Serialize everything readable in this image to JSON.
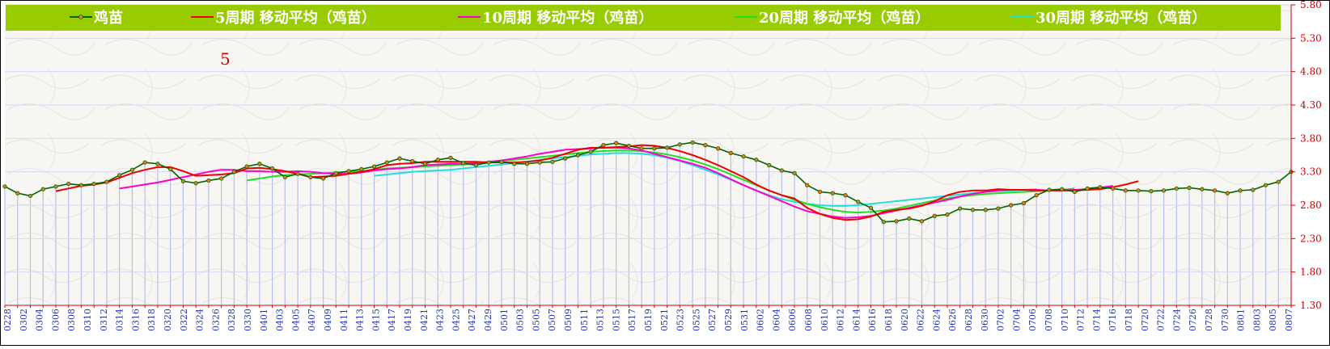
{
  "chart_data": {
    "type": "line",
    "annotation": "5",
    "legend_position": "top",
    "y_axis_side": "right",
    "ylim": [
      1.3,
      5.8
    ],
    "yticks": [
      1.3,
      1.8,
      2.3,
      2.8,
      3.3,
      3.8,
      4.3,
      4.8,
      5.3,
      5.8
    ],
    "x_labels": [
      "0228",
      "0302",
      "0304",
      "0306",
      "0308",
      "0310",
      "0312",
      "0314",
      "0316",
      "0318",
      "0320",
      "0322",
      "0324",
      "0326",
      "0328",
      "0330",
      "0401",
      "0403",
      "0405",
      "0407",
      "0409",
      "0411",
      "0413",
      "0415",
      "0417",
      "0419",
      "0421",
      "0423",
      "0425",
      "0427",
      "0429",
      "0501",
      "0503",
      "0505",
      "0507",
      "0509",
      "0511",
      "0513",
      "0515",
      "0517",
      "0519",
      "0521",
      "0523",
      "0525",
      "0527",
      "0529",
      "0531",
      "0602",
      "0604",
      "0606",
      "0608",
      "0610",
      "0612",
      "0614",
      "0616",
      "0618",
      "0620",
      "0622",
      "0624",
      "0626",
      "0628",
      "0630",
      "0702",
      "0704",
      "0706",
      "0708",
      "0710",
      "0712",
      "0714",
      "0716",
      "0718",
      "0720",
      "0722",
      "0724",
      "0726",
      "0728",
      "0730",
      "0801",
      "0803",
      "0805",
      "0807"
    ],
    "colors": {
      "legend_bg": "#99cc00",
      "legend_text": "#ffffff",
      "tick_text": "#cc0000",
      "xlabel_text": "#2233aa",
      "volume_bar": "#b8bff0",
      "gridline": "#d4d8f4"
    },
    "series": [
      {
        "name": "鸡苗",
        "color": "#006400",
        "marker_color": "#e08020",
        "style": "line-marker",
        "values": [
          3.08,
          2.98,
          2.94,
          3.04,
          3.08,
          3.12,
          3.1,
          3.12,
          3.15,
          3.25,
          3.33,
          3.44,
          3.42,
          3.34,
          3.16,
          3.13,
          3.17,
          3.2,
          3.3,
          3.38,
          3.42,
          3.35,
          3.22,
          3.27,
          3.22,
          3.2,
          3.28,
          3.31,
          3.34,
          3.38,
          3.44,
          3.5,
          3.46,
          3.42,
          3.48,
          3.51,
          3.43,
          3.4,
          3.44,
          3.45,
          3.42,
          3.42,
          3.44,
          3.45,
          3.5,
          3.55,
          3.6,
          3.7,
          3.73,
          3.69,
          3.65,
          3.65,
          3.66,
          3.71,
          3.74,
          3.7,
          3.65,
          3.58,
          3.53,
          3.48,
          3.4,
          3.32,
          3.28,
          3.1,
          3.0,
          2.98,
          2.95,
          2.85,
          2.76,
          2.55,
          2.56,
          2.6,
          2.56,
          2.64,
          2.66,
          2.75,
          2.73,
          2.73,
          2.75,
          2.8,
          2.83,
          2.95,
          3.03,
          3.04,
          3.0,
          3.05,
          3.07,
          3.05,
          3.02,
          3.02,
          3.01,
          3.02,
          3.05,
          3.06,
          3.04,
          3.02,
          2.98,
          3.02,
          3.03,
          3.1,
          3.15,
          3.3
        ]
      },
      {
        "name": "5周期 移动平均（鸡苗）",
        "color": "#ee0000",
        "start": 4,
        "values": [
          3.01,
          3.05,
          3.09,
          3.11,
          3.14,
          3.21,
          3.28,
          3.33,
          3.37,
          3.37,
          3.31,
          3.24,
          3.25,
          3.26,
          3.28,
          3.35,
          3.36,
          3.34,
          3.31,
          3.27,
          3.22,
          3.23,
          3.24,
          3.27,
          3.3,
          3.34,
          3.4,
          3.42,
          3.43,
          3.45,
          3.45,
          3.45,
          3.45,
          3.45,
          3.44,
          3.44,
          3.44,
          3.45,
          3.47,
          3.51,
          3.57,
          3.63,
          3.66,
          3.66,
          3.67,
          3.68,
          3.7,
          3.69,
          3.66,
          3.61,
          3.55,
          3.48,
          3.4,
          3.31,
          3.22,
          3.11,
          3.02,
          2.95,
          2.9,
          2.76,
          2.67,
          2.61,
          2.58,
          2.59,
          2.63,
          2.7,
          2.73,
          2.75,
          2.79,
          2.86,
          2.95,
          3.0,
          3.02,
          3.02,
          3.04,
          3.03,
          3.03,
          3.02,
          3.02,
          3.02,
          3.02,
          3.03,
          3.04,
          3.07,
          3.11,
          3.16
        ]
      },
      {
        "name": "10周期 移动平均（鸡苗）",
        "color": "#ff00cc",
        "start": 9,
        "values": [
          3.05,
          3.08,
          3.11,
          3.14,
          3.18,
          3.22,
          3.26,
          3.3,
          3.33,
          3.33,
          3.31,
          3.31,
          3.3,
          3.3,
          3.31,
          3.3,
          3.28,
          3.27,
          3.27,
          3.29,
          3.32,
          3.34,
          3.35,
          3.37,
          3.4,
          3.41,
          3.42,
          3.42,
          3.43,
          3.45,
          3.47,
          3.5,
          3.53,
          3.57,
          3.6,
          3.63,
          3.64,
          3.65,
          3.66,
          3.66,
          3.65,
          3.62,
          3.57,
          3.52,
          3.47,
          3.42,
          3.36,
          3.28,
          3.19,
          3.1,
          3.02,
          2.94,
          2.86,
          2.78,
          2.71,
          2.67,
          2.63,
          2.61,
          2.62,
          2.64,
          2.68,
          2.72,
          2.76,
          2.8,
          2.84,
          2.88,
          2.93,
          2.97,
          3.0,
          3.02,
          3.03,
          3.03,
          3.03,
          3.02,
          3.02,
          3.03,
          3.04,
          3.06,
          3.09
        ]
      },
      {
        "name": "20周期 移动平均（鸡苗）",
        "color": "#22dd22",
        "start": 19,
        "values": [
          3.17,
          3.2,
          3.23,
          3.25,
          3.26,
          3.27,
          3.28,
          3.29,
          3.3,
          3.31,
          3.33,
          3.35,
          3.36,
          3.37,
          3.38,
          3.39,
          3.4,
          3.41,
          3.42,
          3.44,
          3.46,
          3.48,
          3.5,
          3.52,
          3.54,
          3.56,
          3.58,
          3.6,
          3.61,
          3.62,
          3.62,
          3.61,
          3.59,
          3.56,
          3.52,
          3.47,
          3.41,
          3.34,
          3.26,
          3.18,
          3.1,
          3.02,
          2.95,
          2.88,
          2.82,
          2.77,
          2.73,
          2.7,
          2.69,
          2.7,
          2.72,
          2.75,
          2.79,
          2.83,
          2.87,
          2.9,
          2.93,
          2.95,
          2.97,
          2.98,
          2.99,
          3.0,
          3.01,
          3.02,
          3.03,
          3.05
        ]
      },
      {
        "name": "30周期 移动平均（鸡苗）",
        "color": "#22dddd",
        "start": 29,
        "values": [
          3.24,
          3.26,
          3.28,
          3.3,
          3.31,
          3.32,
          3.33,
          3.35,
          3.37,
          3.39,
          3.41,
          3.43,
          3.45,
          3.48,
          3.5,
          3.52,
          3.54,
          3.56,
          3.57,
          3.58,
          3.58,
          3.57,
          3.55,
          3.51,
          3.46,
          3.4,
          3.33,
          3.26,
          3.18,
          3.1,
          3.02,
          2.95,
          2.89,
          2.85,
          2.82,
          2.8,
          2.79,
          2.79,
          2.8,
          2.82,
          2.84,
          2.86,
          2.88,
          2.9,
          2.92,
          2.94,
          2.96,
          2.98,
          3.0,
          3.01,
          3.02,
          3.03,
          3.04
        ]
      }
    ]
  }
}
